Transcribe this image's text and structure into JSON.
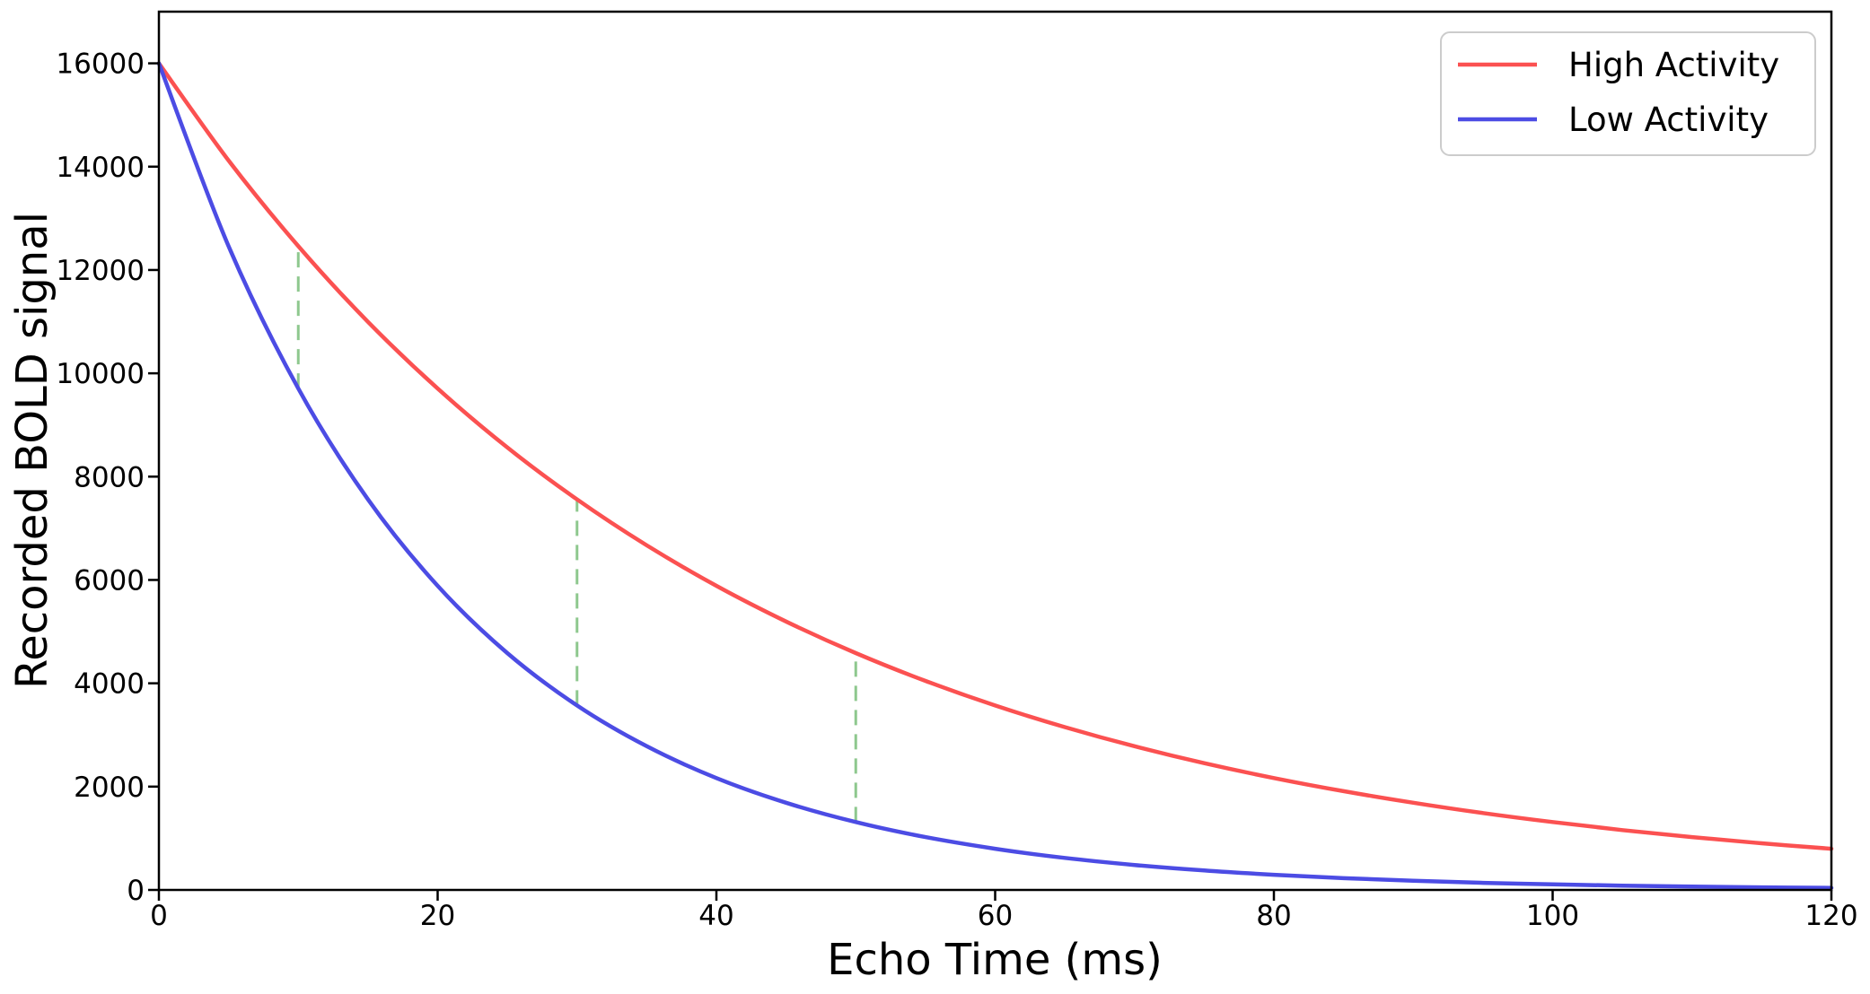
{
  "chart_data": {
    "type": "line",
    "title": "",
    "xlabel": "Echo Time (ms)",
    "ylabel": "Recorded BOLD signal",
    "xlim": [
      0,
      120
    ],
    "ylim": [
      0,
      17000
    ],
    "xticks": [
      0,
      20,
      40,
      60,
      80,
      100,
      120
    ],
    "yticks": [
      0,
      2000,
      4000,
      6000,
      8000,
      10000,
      12000,
      14000,
      16000
    ],
    "grid": false,
    "axis_color": "#000000",
    "x": [
      0,
      5,
      10,
      15,
      20,
      25,
      30,
      35,
      40,
      45,
      50,
      55,
      60,
      65,
      70,
      75,
      80,
      85,
      90,
      95,
      100,
      105,
      110,
      115,
      120
    ],
    "series": [
      {
        "name": "High Activity",
        "color": "#fb5151",
        "values": [
          16000,
          14120,
          12461,
          10996,
          9705,
          8564,
          7558,
          6670,
          5886,
          5195,
          4584,
          4046,
          3570,
          3151,
          2781,
          2454,
          2166,
          1911,
          1687,
          1488,
          1314,
          1159,
          1023,
          903,
          797
        ]
      },
      {
        "name": "Low Activity",
        "color": "#4c4ce4",
        "values": [
          16000,
          12461,
          9705,
          7558,
          5886,
          4584,
          3570,
          2781,
          2166,
          1687,
          1314,
          1023,
          797,
          620,
          483,
          376,
          293,
          228,
          178,
          138,
          108,
          84,
          65,
          51,
          40
        ]
      }
    ],
    "annotations": {
      "type": "vertical-dashed-connectors",
      "color": "#8ec88e",
      "segments": [
        {
          "x": 10,
          "y_from": 9705,
          "y_to": 12461
        },
        {
          "x": 30,
          "y_from": 3570,
          "y_to": 7558
        },
        {
          "x": 50,
          "y_from": 1314,
          "y_to": 4584
        }
      ]
    },
    "legend": {
      "position": "upper right",
      "border_color": "#cccccc",
      "background": "#ffffff"
    }
  }
}
